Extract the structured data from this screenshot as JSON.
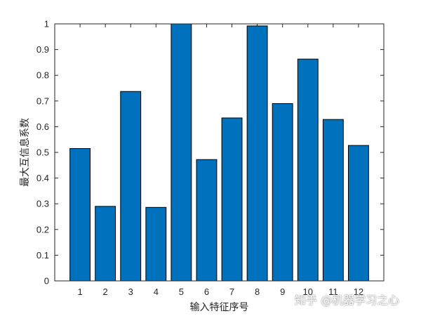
{
  "chart_data": {
    "type": "bar",
    "categories": [
      "1",
      "2",
      "3",
      "4",
      "5",
      "6",
      "7",
      "8",
      "9",
      "10",
      "11",
      "12"
    ],
    "values": [
      0.515,
      0.29,
      0.737,
      0.286,
      1.0,
      0.472,
      0.634,
      0.992,
      0.69,
      0.863,
      0.628,
      0.527
    ],
    "xlabel": "输入特征序号",
    "ylabel": "最大互信息系数",
    "ylim": [
      0,
      1
    ],
    "yticks": [
      "0",
      "0.1",
      "0.2",
      "0.3",
      "0.4",
      "0.5",
      "0.6",
      "0.7",
      "0.8",
      "0.9",
      "1"
    ],
    "bar_color": "#0072BD",
    "bar_edge_color": "#000000",
    "grid": false
  },
  "watermark": "知乎 @机器学习之心"
}
